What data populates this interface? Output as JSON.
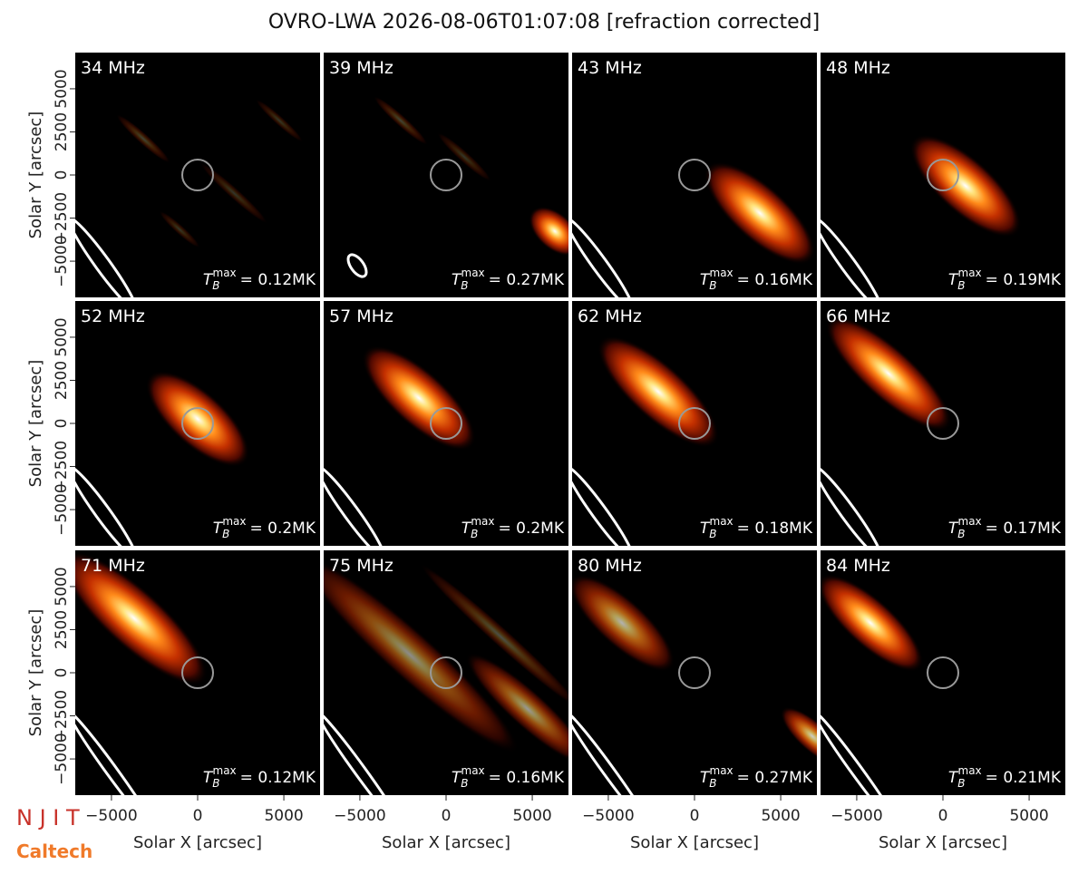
{
  "chart_data": {
    "type": "image-grid",
    "title": "OVRO-LWA 2026-08-06T01:07:08 [refraction corrected]",
    "xlabel": "Solar X [arcsec]",
    "ylabel": "Solar Y [arcsec]",
    "xlim": [
      -7100,
      7100
    ],
    "ylim": [
      -7100,
      7100
    ],
    "xticks": [
      {
        "value": -5000,
        "label": "−5000"
      },
      0,
      5000
    ],
    "yticks": [
      {
        "value": -5000,
        "label": "−5000"
      },
      {
        "value": -2500,
        "label": "−2500"
      },
      0,
      2500,
      5000
    ],
    "tb_symbol": "T",
    "tb_sub": "B",
    "tb_sup": "max",
    "panels": [
      {
        "label": "34 MHz",
        "tb_max": "= 0.12MK"
      },
      {
        "label": "39 MHz",
        "tb_max": "= 0.27MK"
      },
      {
        "label": "43 MHz",
        "tb_max": "= 0.16MK"
      },
      {
        "label": "48 MHz",
        "tb_max": "= 0.19MK"
      },
      {
        "label": "52 MHz",
        "tb_max": "= 0.2MK"
      },
      {
        "label": "57 MHz",
        "tb_max": "= 0.2MK"
      },
      {
        "label": "62 MHz",
        "tb_max": "= 0.18MK"
      },
      {
        "label": "66 MHz",
        "tb_max": "= 0.17MK"
      },
      {
        "label": "71 MHz",
        "tb_max": "= 0.12MK"
      },
      {
        "label": "75 MHz",
        "tb_max": "= 0.16MK"
      },
      {
        "label": "80 MHz",
        "tb_max": "= 0.27MK"
      },
      {
        "label": "84 MHz",
        "tb_max": "= 0.21MK"
      }
    ],
    "logos": [
      "N J I T",
      "Caltech"
    ]
  }
}
